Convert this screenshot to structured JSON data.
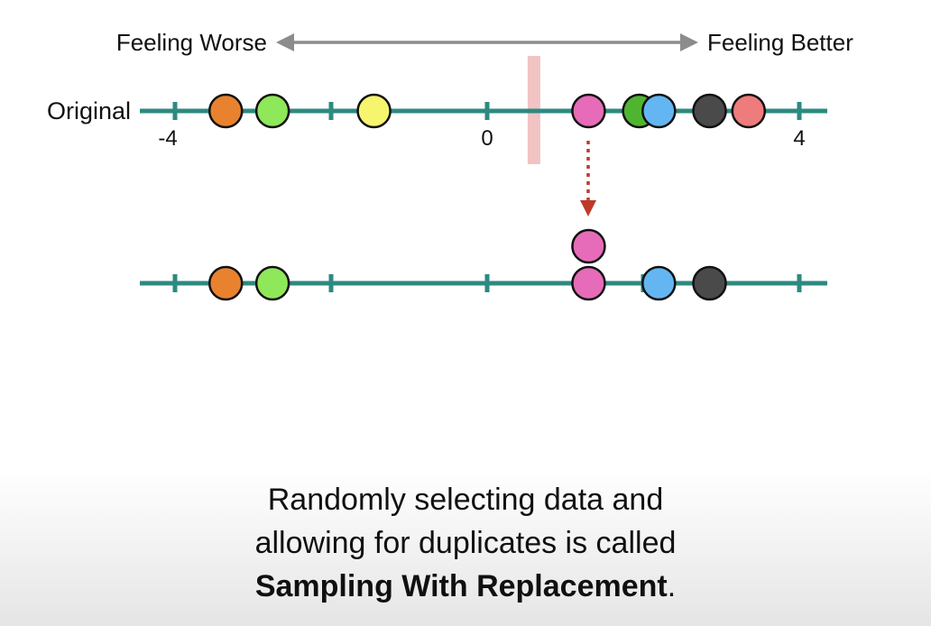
{
  "scale": {
    "left_label": "Feeling Worse",
    "right_label": "Feeling Better",
    "arrow_color": "#8c8c8c"
  },
  "original": {
    "row_label": "Original",
    "tick_labels": [
      {
        "value": -4,
        "text": "-4"
      },
      {
        "value": 0,
        "text": "0"
      },
      {
        "value": 4,
        "text": "4"
      }
    ],
    "ticks": [
      -4,
      -2,
      0,
      2,
      4
    ],
    "threshold": 0.6,
    "points": [
      {
        "value": -3.35,
        "color": "#e8822f"
      },
      {
        "value": -2.75,
        "color": "#8ee85a"
      },
      {
        "value": -1.45,
        "color": "#f7f56e"
      },
      {
        "value": 1.3,
        "color": "#e66cb9"
      },
      {
        "value": 1.95,
        "color": "#4fb531"
      },
      {
        "value": 2.2,
        "color": "#64b6f2"
      },
      {
        "value": 2.85,
        "color": "#4a4a4a"
      },
      {
        "value": 3.35,
        "color": "#ee7c7c"
      }
    ]
  },
  "resample": {
    "ticks": [
      -4,
      -2,
      0,
      2,
      4
    ],
    "points": [
      {
        "value": -3.35,
        "color": "#e8822f",
        "stack": 0
      },
      {
        "value": -2.75,
        "color": "#8ee85a",
        "stack": 0
      },
      {
        "value": 1.3,
        "color": "#e66cb9",
        "stack": 0
      },
      {
        "value": 1.3,
        "color": "#e66cb9",
        "stack": 1
      },
      {
        "value": 2.2,
        "color": "#64b6f2",
        "stack": 0
      },
      {
        "value": 2.85,
        "color": "#4a4a4a",
        "stack": 0
      }
    ]
  },
  "colors": {
    "axis": "#2d8a80",
    "threshold": "#f2c3c3",
    "selection_arrow": "#c0392b"
  },
  "caption": {
    "line1": "Randomly selecting data and",
    "line2": "allowing for duplicates is called",
    "bold": "Sampling With Replacement",
    "end": "."
  }
}
